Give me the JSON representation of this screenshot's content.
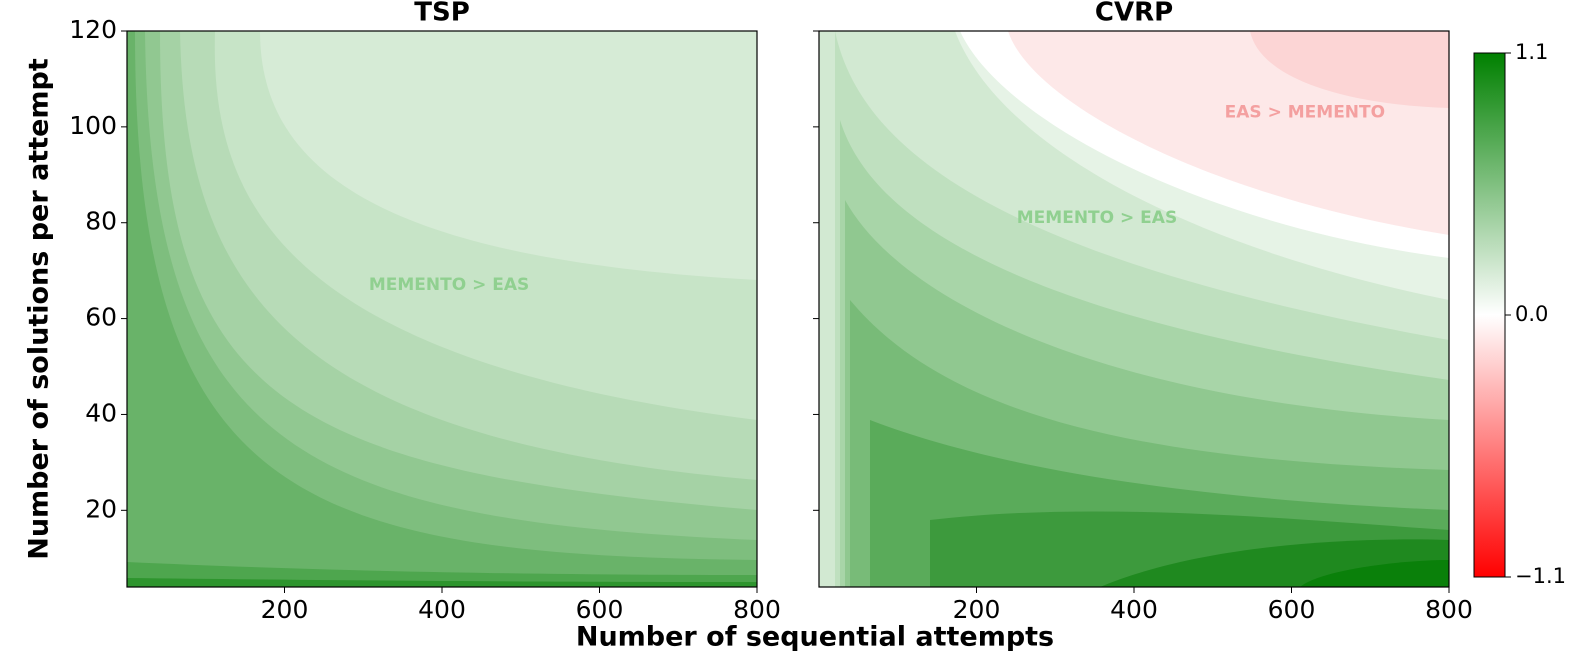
{
  "chart_data": [
    {
      "type": "contour",
      "title": "TSP",
      "xlim": [
        0,
        800
      ],
      "ylim": [
        4,
        120
      ],
      "xticks": [
        200,
        400,
        600,
        800
      ],
      "yticks": [
        20,
        40,
        60,
        80,
        100,
        120
      ],
      "show_ytick_labels": true,
      "annotations": [
        {
          "text": "MEMENTO > EAS",
          "x": 409,
          "y": 67,
          "color": "#90d090"
        }
      ]
    },
    {
      "type": "contour",
      "title": "CVRP",
      "xlim": [
        0,
        800
      ],
      "ylim": [
        4,
        120
      ],
      "xticks": [
        200,
        400,
        600,
        800
      ],
      "yticks": [
        20,
        40,
        60,
        80,
        100,
        120
      ],
      "show_ytick_labels": false,
      "annotations": [
        {
          "text": "MEMENTO > EAS",
          "x": 353,
          "y": 81,
          "color": "#90d090"
        },
        {
          "text": "EAS > MEMENTO",
          "x": 617,
          "y": 103,
          "color": "#f4a0a0"
        }
      ]
    }
  ],
  "xlabel": "Number of sequential attempts",
  "ylabel": "Number of solutions per attempt",
  "colorbar": {
    "lim": [
      -1.1,
      1.1
    ],
    "ticks": [
      1.1,
      {
        "value": 0,
        "label": "0.0"
      },
      {
        "value": -1.1,
        "label": "−1.1"
      }
    ],
    "colors": [
      "#ff0000",
      "#ffffff",
      "#008000"
    ]
  }
}
